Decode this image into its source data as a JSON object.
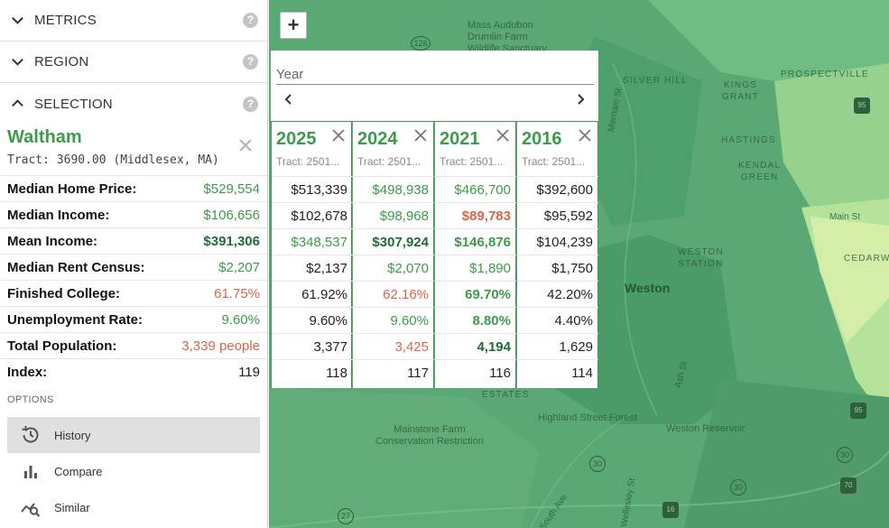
{
  "sidebar": {
    "sections": [
      {
        "label": "METRICS",
        "help": "?"
      },
      {
        "label": "REGION",
        "help": "?"
      },
      {
        "label": "SELECTION",
        "help": "?"
      }
    ],
    "selection": {
      "title": "Waltham",
      "tract": "Tract: 3690.00 (Middlesex, MA)"
    },
    "metrics": [
      {
        "label": "Median Home Price:",
        "value": "$529,554"
      },
      {
        "label": "Median Income:",
        "value": "$106,656"
      },
      {
        "label": "Mean Income:",
        "value": "$391,306"
      },
      {
        "label": "Median Rent Census:",
        "value": "$2,207"
      },
      {
        "label": "Finished College:",
        "value": "61.75%"
      },
      {
        "label": "Unemployment Rate:",
        "value": "9.60%"
      },
      {
        "label": "Total Population:",
        "value": "3,339 people"
      },
      {
        "label": "Index:",
        "value": "119"
      }
    ],
    "options_label": "OPTIONS",
    "options": [
      {
        "label": "History",
        "icon": "history-icon",
        "active": true
      },
      {
        "label": "Compare",
        "icon": "bar-chart-icon",
        "active": false
      },
      {
        "label": "Similar",
        "icon": "similar-search-icon",
        "active": false
      }
    ]
  },
  "map": {
    "zoom_in": "+",
    "places": [
      "Mass Audubon",
      "Drumlin Farm",
      "Wildlife Sanctuary",
      "SILVER HILL",
      "KINGS",
      "GRANT",
      "PROSPECTVILLE",
      "HASTINGS",
      "KENDAL",
      "GREEN",
      "WESTON",
      "STATION",
      "Weston",
      "Main St",
      "CEDARWOOD",
      "ESTATES",
      "Mainstone Farm",
      "Conservation Restriction",
      "Highland Street Forest",
      "Weston Reservoir",
      "Merriam St",
      "Ash St",
      "South Ave",
      "Wellesley St"
    ],
    "shields": [
      "126",
      "95",
      "95",
      "30",
      "30",
      "30",
      "27",
      "16",
      "70"
    ]
  },
  "year_picker": {
    "label": "Year",
    "years": [
      {
        "year": "2025",
        "tract": "Tract: 2501...",
        "values": [
          "$513,339",
          "$102,678",
          "$348,537",
          "$2,137",
          "61.92%",
          "9.60%",
          "3,377",
          "118"
        ]
      },
      {
        "year": "2024",
        "tract": "Tract: 2501...",
        "values": [
          "$498,938",
          "$98,968",
          "$307,924",
          "$2,070",
          "62.16%",
          "9.60%",
          "3,425",
          "117"
        ]
      },
      {
        "year": "2021",
        "tract": "Tract: 2501...",
        "values": [
          "$466,700",
          "$89,783",
          "$146,876",
          "$1,890",
          "69.70%",
          "8.80%",
          "4,194",
          "116"
        ]
      },
      {
        "year": "2016",
        "tract": "Tract: 2501...",
        "values": [
          "$392,600",
          "$95,592",
          "$104,239",
          "$1,750",
          "42.20%",
          "4.40%",
          "1,629",
          "114"
        ]
      }
    ]
  }
}
